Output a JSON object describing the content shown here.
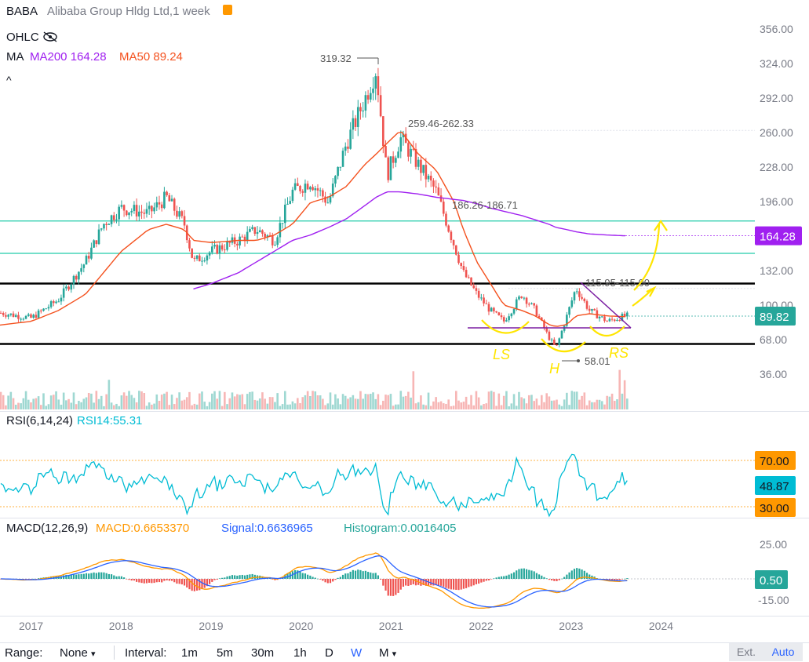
{
  "header": {
    "symbol": "BABA",
    "title": "Alibaba Group Hldg Ltd,1 week",
    "ohlc_label": "OHLC",
    "ma_label": "MA",
    "ma200_text": "MA200 164.28",
    "ma50_text": "MA50 89.24",
    "chevron": "^"
  },
  "colors": {
    "up": "#26a69a",
    "down": "#ef5350",
    "ma200": "#a020f0",
    "ma50": "#f4511e",
    "rsi": "#00bcd4",
    "macd": "#ff9800",
    "signal": "#2962ff",
    "annotation": "#ffe500",
    "trendline": "#7b1fa2",
    "level_cyan": "#22ccaa",
    "level_black": "#000000"
  },
  "price_axis": {
    "ticks": [
      "356.00",
      "324.00",
      "292.00",
      "260.00",
      "228.00",
      "196.00",
      "164.28",
      "132.00",
      "100.00",
      "89.82",
      "68.00",
      "36.00"
    ],
    "last_price_label": "89.82",
    "ma200_label": "164.28"
  },
  "time_axis": [
    "2017",
    "2018",
    "2019",
    "2020",
    "2021",
    "2022",
    "2023",
    "2024"
  ],
  "annotations": {
    "high": "319.32",
    "range1": "259.46-262.33",
    "range2": "186.26-186.71",
    "range3": "115.95-115.00",
    "low": "58.01",
    "ls": "LS",
    "h": "H",
    "rs": "RS"
  },
  "rsi_panel": {
    "title": "RSI(6,14,24)",
    "series_label": "RSI14:55.31",
    "labels": [
      "70.00",
      "48.87",
      "30.00"
    ],
    "faint_tick": "70.00"
  },
  "macd_panel": {
    "title": "MACD(12,26,9)",
    "macd_label": "MACD:0.6653370",
    "signal_label": "Signal:0.6636965",
    "hist_label": "Histogram:0.0016405",
    "axis": [
      "25.00",
      "0.50",
      "-15.00"
    ]
  },
  "bottom_bar": {
    "range_label": "Range:",
    "range_value": "None",
    "range_caret": "▾",
    "interval_label": "Interval:",
    "intervals": [
      "1m",
      "5m",
      "30m",
      "1h",
      "D",
      "W",
      "M"
    ],
    "interval_caret": "▾",
    "ext": "Ext.",
    "auto": "Auto"
  },
  "chart_data": {
    "type": "line",
    "title": "Alibaba Group Hldg Ltd,1 week",
    "ylim": [
      36,
      356
    ],
    "x": [
      2016.5,
      2017.0,
      2017.3,
      2017.6,
      2017.8,
      2018.0,
      2018.3,
      2018.5,
      2018.7,
      2018.8,
      2019.0,
      2019.3,
      2019.5,
      2019.7,
      2019.9,
      2020.1,
      2020.3,
      2020.5,
      2020.7,
      2020.83,
      2020.95,
      2021.1,
      2021.3,
      2021.5,
      2021.7,
      2021.8,
      2021.95,
      2022.1,
      2022.25,
      2022.45,
      2022.6,
      2022.75,
      2022.83,
      2022.95,
      2023.05,
      2023.2,
      2023.4,
      2023.6
    ],
    "series": [
      {
        "values": [
          95,
          88,
          105,
          140,
          175,
          190,
          185,
          200,
          175,
          140,
          150,
          160,
          170,
          160,
          205,
          215,
          195,
          250,
          290,
          319,
          220,
          255,
          230,
          205,
          155,
          130,
          110,
          95,
          85,
          110,
          95,
          70,
          60,
          90,
          116,
          95,
          85,
          90
        ]
      },
      {
        "values": [
          80,
          85,
          95,
          110,
          130,
          150,
          170,
          175,
          170,
          160,
          158,
          160,
          160,
          165,
          175,
          195,
          200,
          210,
          230,
          240,
          250,
          262,
          240,
          225,
          195,
          170,
          140,
          120,
          100,
          95,
          90,
          82,
          80,
          82,
          90,
          92,
          90,
          89.24
        ]
      },
      {
        "values": [
          null,
          null,
          null,
          null,
          null,
          null,
          null,
          null,
          null,
          115,
          120,
          130,
          140,
          150,
          160,
          165,
          172,
          180,
          192,
          200,
          205,
          205,
          203,
          200,
          198,
          197,
          194,
          190,
          187,
          183,
          179,
          175,
          172,
          170,
          168,
          166,
          165,
          164.28
        ]
      }
    ],
    "horizontal_levels": [
      178,
      148,
      120,
      64
    ],
    "rsi14_last": 55.31,
    "macd_last": 0.665337,
    "signal_last": 0.6636965,
    "histogram_last": 0.0016405
  }
}
